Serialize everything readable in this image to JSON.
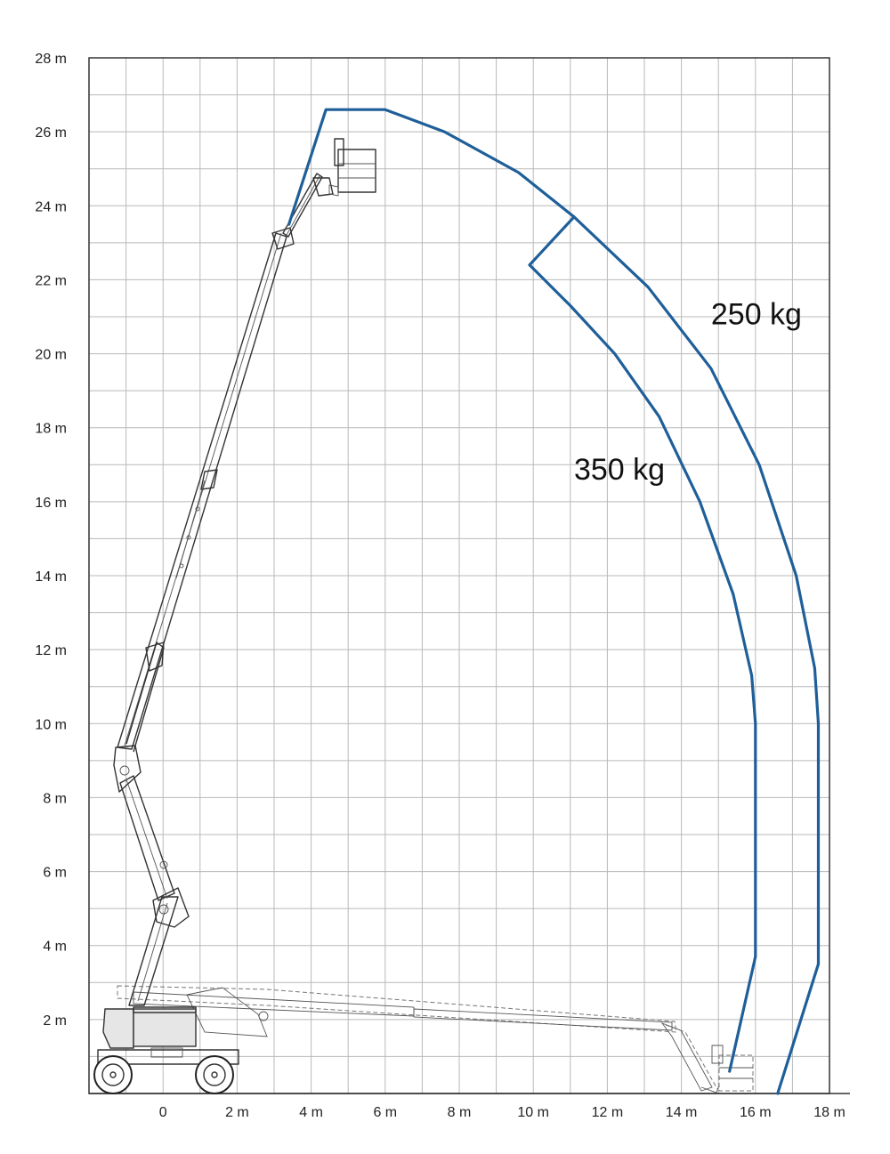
{
  "chart_data": {
    "type": "line",
    "title": "",
    "xlabel": "",
    "ylabel": "",
    "xlim": [
      -2,
      18
    ],
    "ylim": [
      0,
      28
    ],
    "x_ticks": [
      {
        "value": 0,
        "label": "0"
      },
      {
        "value": 2,
        "label": "2 m"
      },
      {
        "value": 4,
        "label": "4 m"
      },
      {
        "value": 6,
        "label": "6 m"
      },
      {
        "value": 8,
        "label": "8 m"
      },
      {
        "value": 10,
        "label": "10 m"
      },
      {
        "value": 12,
        "label": "12 m"
      },
      {
        "value": 14,
        "label": "14 m"
      },
      {
        "value": 16,
        "label": "16 m"
      },
      {
        "value": 18,
        "label": "18 m"
      }
    ],
    "y_ticks": [
      {
        "value": 2,
        "label": "2 m"
      },
      {
        "value": 4,
        "label": "4 m"
      },
      {
        "value": 6,
        "label": "6 m"
      },
      {
        "value": 8,
        "label": "8 m"
      },
      {
        "value": 10,
        "label": "10 m"
      },
      {
        "value": 12,
        "label": "12 m"
      },
      {
        "value": 14,
        "label": "14 m"
      },
      {
        "value": 16,
        "label": "16 m"
      },
      {
        "value": 18,
        "label": "18 m"
      },
      {
        "value": 20,
        "label": "20 m"
      },
      {
        "value": 22,
        "label": "22 m"
      },
      {
        "value": 24,
        "label": "24 m"
      },
      {
        "value": 26,
        "label": "26 m"
      },
      {
        "value": 28,
        "label": "28 m"
      }
    ],
    "grid": true,
    "series": [
      {
        "name": "250 kg",
        "color": "#1f5f99",
        "points": [
          [
            3.4,
            23.5
          ],
          [
            4.4,
            26.6
          ],
          [
            6.0,
            26.6
          ],
          [
            7.6,
            26.0
          ],
          [
            9.6,
            24.9
          ],
          [
            11.1,
            23.7
          ],
          [
            13.1,
            21.8
          ],
          [
            14.8,
            19.6
          ],
          [
            16.1,
            17.0
          ],
          [
            17.1,
            14.0
          ],
          [
            17.6,
            11.5
          ],
          [
            17.7,
            10.0
          ],
          [
            17.7,
            3.5
          ],
          [
            16.6,
            0.0
          ]
        ]
      },
      {
        "name": "350 kg",
        "color": "#1f5f99",
        "points": [
          [
            11.1,
            23.7
          ],
          [
            9.9,
            22.4
          ],
          [
            11.0,
            21.3
          ],
          [
            12.2,
            20.0
          ],
          [
            13.4,
            18.3
          ],
          [
            14.5,
            16.0
          ],
          [
            15.4,
            13.5
          ],
          [
            15.9,
            11.3
          ],
          [
            16.0,
            10.0
          ],
          [
            16.0,
            3.7
          ],
          [
            15.3,
            0.6
          ]
        ]
      }
    ],
    "annotations": [
      {
        "text": "250 kg",
        "x": 14.8,
        "y": 20.8
      },
      {
        "text": "350 kg",
        "x": 11.1,
        "y": 16.6
      }
    ]
  }
}
